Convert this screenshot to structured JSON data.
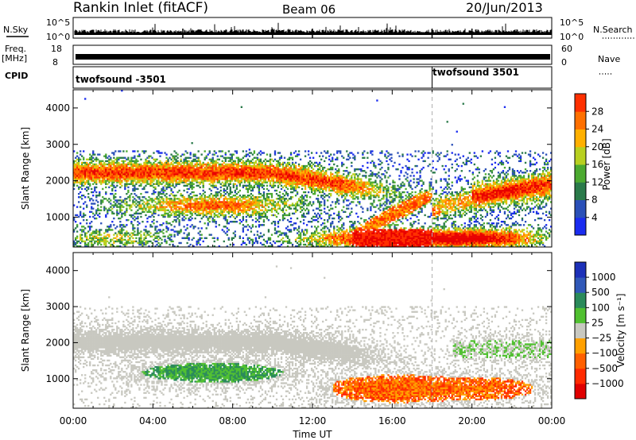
{
  "header": {
    "station": "Rankin Inlet (fitACF)",
    "beam": "Beam 06",
    "date": "20/Jun/2013"
  },
  "strips": {
    "nsky_label": "N.Sky",
    "nsearch_label": "N.Search",
    "nsky_ticks": [
      "10^5",
      "10^0"
    ],
    "nsky_right_ticks": [
      "10^5",
      "10^0"
    ],
    "freq_label": "Freq.",
    "freq_unit": "[MHz]",
    "freq_ticks": [
      "18",
      "8"
    ],
    "nave_label": "Nave",
    "nave_ticks": [
      "60",
      "0"
    ],
    "cpid_label": "CPID",
    "cpid_segments": [
      {
        "name": "twofsound -3501",
        "start_hour": 0
      },
      {
        "name": "twofsound 3501",
        "start_hour": 18
      }
    ]
  },
  "colors": {
    "power_scale": [
      "#1a2cf0",
      "#2a50b8",
      "#2a7a4a",
      "#4caa30",
      "#b8d020",
      "#ffb000",
      "#ff7000",
      "#ff3000",
      "#e80000"
    ],
    "velocity_scale": [
      "#1c30b8",
      "#3058b8",
      "#2a8a5a",
      "#50c030",
      "#c8c8c0",
      "#ffa000",
      "#ff6000",
      "#ff2a00",
      "#e00000"
    ],
    "velocity_gray": "#c8c8c0"
  },
  "chart_data": [
    {
      "type": "heatmap",
      "panel": "power",
      "ylabel": "Slant Range [km]",
      "colorbar_label": "Power [dB]",
      "colorbar_ticks": [
        "4",
        "8",
        "12",
        "16",
        "20",
        "24",
        "28"
      ],
      "x_range_hours": [
        0,
        24
      ],
      "ylim": [
        180,
        4500
      ],
      "y_ticks": [
        "1000",
        "2000",
        "3000",
        "4000"
      ],
      "x_ticks": [
        "00:00",
        "04:00",
        "08:00",
        "12:00",
        "16:00",
        "20:00",
        "00:00"
      ],
      "cpid_change_hour": 18
    },
    {
      "type": "heatmap",
      "panel": "velocity",
      "ylabel": "Slant Range [km]",
      "xlabel": "Time UT",
      "colorbar_label": "Velocity [m s⁻¹]",
      "colorbar_ticks": [
        "1000",
        "500",
        "100",
        "25",
        "−25",
        "−100",
        "−500",
        "−1000"
      ],
      "x_range_hours": [
        0,
        24
      ],
      "ylim": [
        180,
        4500
      ],
      "y_ticks": [
        "1000",
        "2000",
        "3000",
        "4000"
      ],
      "x_ticks": [
        "00:00",
        "04:00",
        "08:00",
        "12:00",
        "16:00",
        "20:00",
        "00:00"
      ],
      "cpid_change_hour": 18
    }
  ]
}
